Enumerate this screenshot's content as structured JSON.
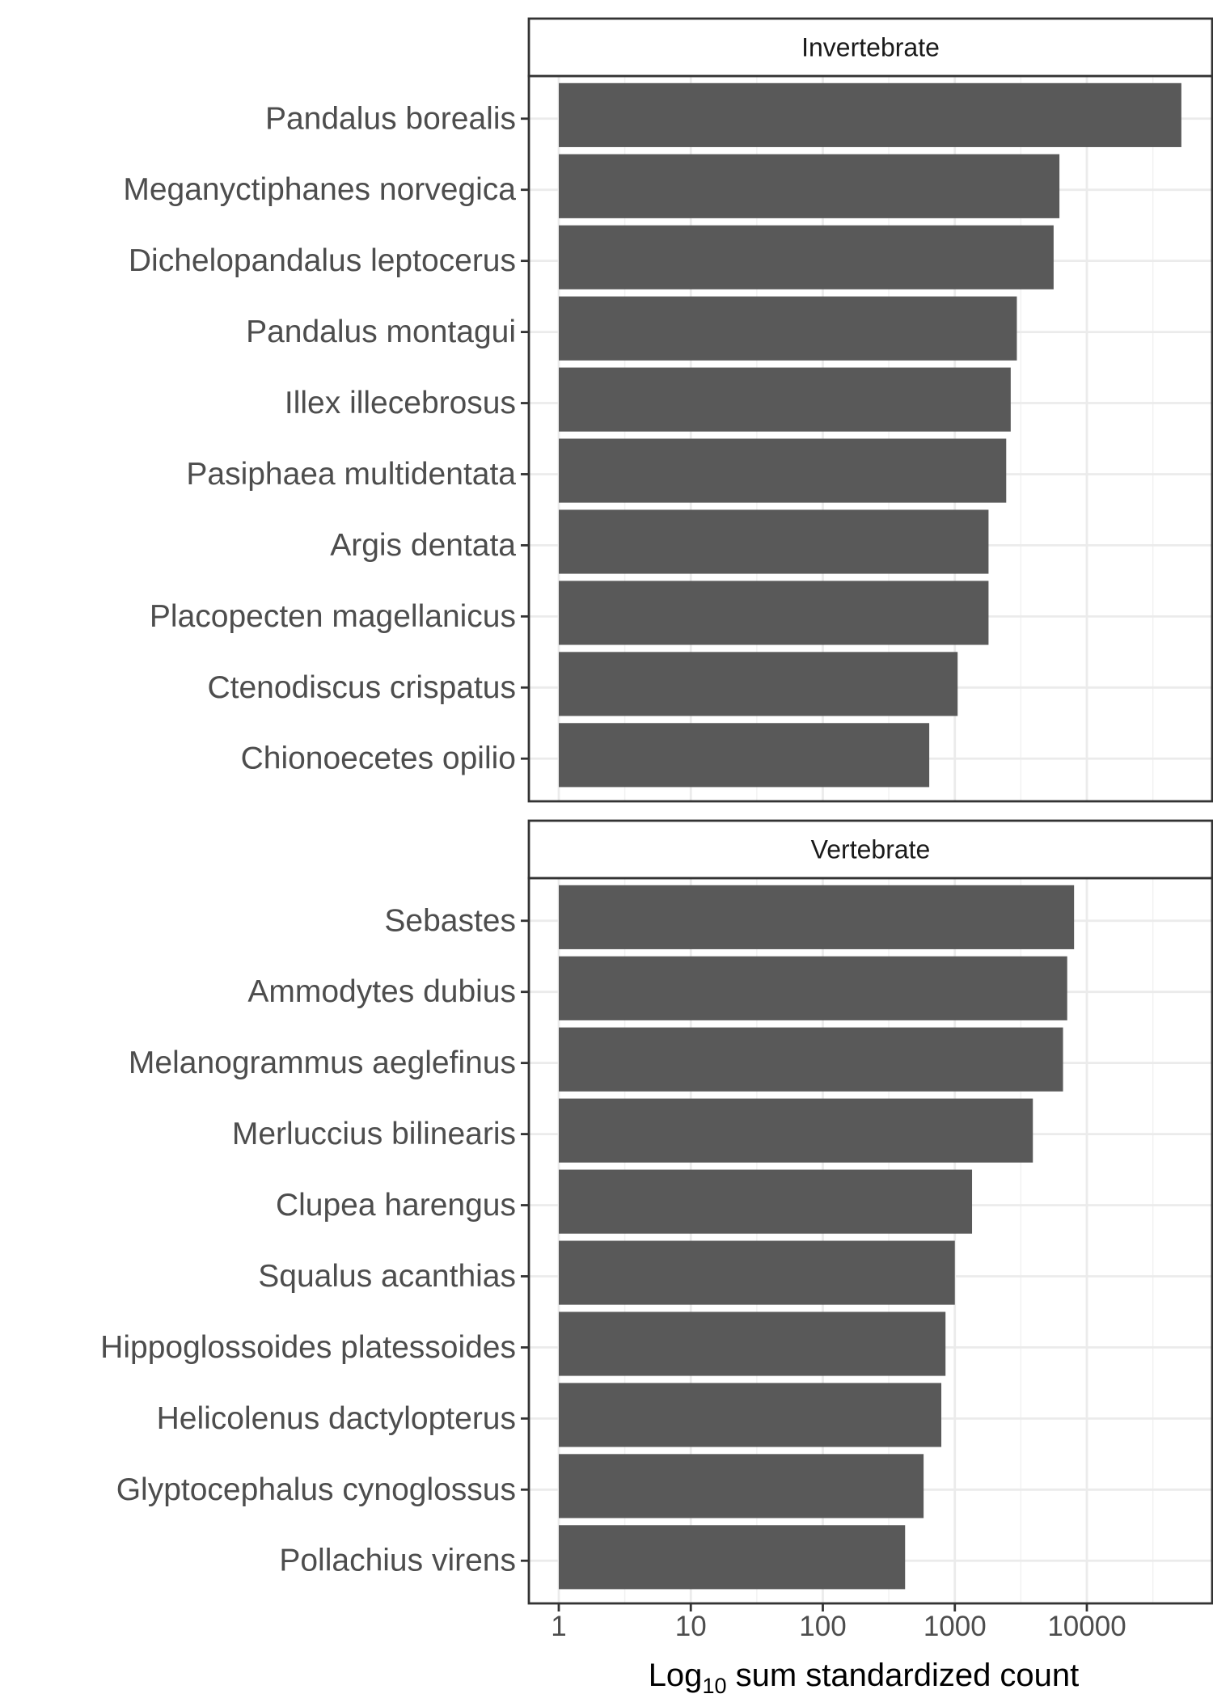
{
  "chart_data": {
    "type": "bar",
    "orientation": "horizontal",
    "scale": "log10",
    "xlim": [
      0.55,
      150000
    ],
    "x_ticks": [
      1,
      10,
      100,
      1000,
      10000
    ],
    "x_tick_labels": [
      "1",
      "10",
      "100",
      "1000",
      "10000"
    ],
    "xlabel": {
      "prefix": "Log",
      "subscript": "10",
      "suffix": " sum standardized count"
    },
    "grid": true,
    "bar_color": "#595959",
    "panels": [
      {
        "title": "Invertebrate",
        "categories": [
          "Pandalus borealis",
          "Meganyctiphanes norvegica",
          "Dichelopandalus leptocerus",
          "Pandalus montagui",
          "Illex illecebrosus",
          "Pasiphaea multidentata",
          "Argis dentata",
          "Placopecten magellanicus",
          "Ctenodiscus crispatus",
          "Chionoecetes opilio"
        ],
        "values": [
          52000,
          6200,
          5600,
          2950,
          2650,
          2450,
          1800,
          1800,
          1050,
          640
        ]
      },
      {
        "title": "Vertebrate",
        "categories": [
          "Sebastes",
          "Ammodytes dubius",
          "Melanogrammus aeglefinus",
          "Merluccius bilinearis",
          "Clupea harengus",
          "Squalus acanthias",
          "Hippoglossoides platessoides",
          "Helicolenus dactylopterus",
          "Glyptocephalus cynoglossus",
          "Pollachius virens"
        ],
        "values": [
          8000,
          7100,
          6600,
          3900,
          1350,
          1000,
          850,
          790,
          580,
          420
        ]
      }
    ]
  }
}
